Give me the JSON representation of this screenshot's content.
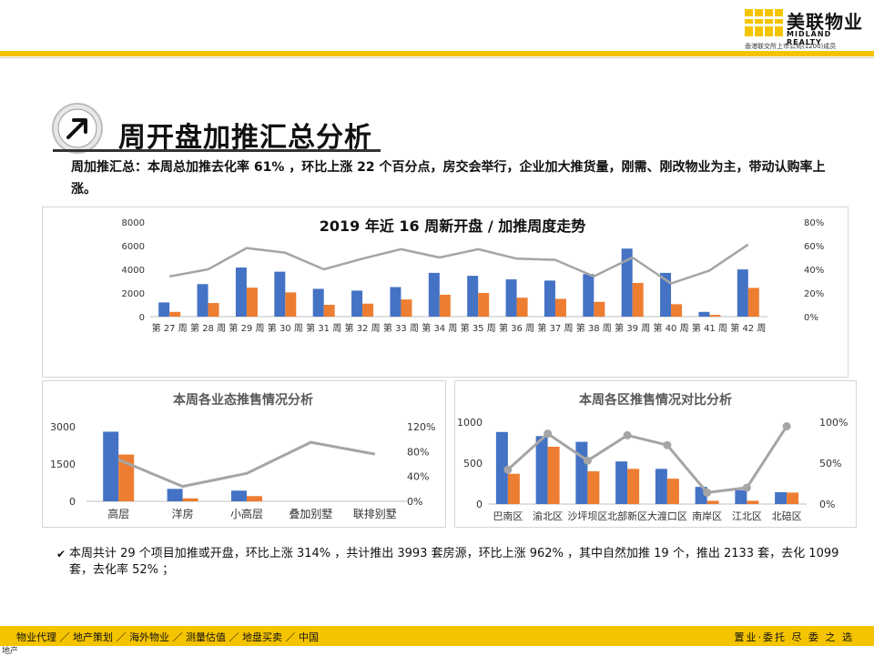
{
  "header": {
    "logo_cn": "美联物业",
    "logo_en": "MIDLAND REALTY",
    "logo_sub": "香港联交所上市公司(1200)成员"
  },
  "page": {
    "title": "周开盘加推汇总分析",
    "summary": "周加推汇总：本周总加推去化率 61% ，环比上涨 22 个百分点，房交会举行，企业加大推货量，刚需、刚改物业为主，带动认购率上涨。",
    "note": "本周共计 29 个项目加推或开盘，环比上涨 314% ，共计推出 3993 套房源，环比上涨 962% ，其中自然加推 19 个，推出 2133 套，去化 1099 套，去化率 52% ；"
  },
  "colors": {
    "blue": "#4472c4",
    "orange": "#ed7d31",
    "gray": "#a5a5a5",
    "accent": "#f5c400"
  },
  "chart_data": [
    {
      "type": "bar",
      "title": "2019 年近 16 周新开盘 / 加推周度走势",
      "categories": [
        "第 27 周",
        "第 28 周",
        "第 29 周",
        "第 30 周",
        "第 31 周",
        "第 32 周",
        "第 33 周",
        "第 34 周",
        "第 35 周",
        "第 36 周",
        "第 37 周",
        "第 38 周",
        "第 39 周",
        "第 40 周",
        "第 41 周",
        "第 42 周"
      ],
      "series": [
        {
          "values": [
            1200,
            2750,
            4150,
            3800,
            2350,
            2200,
            2500,
            3700,
            3450,
            3150,
            3050,
            3600,
            5750,
            3700,
            400,
            3990
          ]
        },
        {
          "values": [
            400,
            1150,
            2450,
            2050,
            1000,
            1100,
            1450,
            1850,
            2000,
            1600,
            1500,
            1250,
            2850,
            1050,
            150,
            2430
          ]
        },
        {
          "axis": "right",
          "type": "line",
          "values": [
            0.34,
            0.4,
            0.58,
            0.54,
            0.4,
            0.49,
            0.57,
            0.5,
            0.57,
            0.49,
            0.48,
            0.34,
            0.5,
            0.28,
            0.39,
            0.61
          ]
        }
      ],
      "yticks": [
        "0",
        "2000",
        "4000",
        "6000",
        "8000"
      ],
      "y2ticks": [
        "0%",
        "20%",
        "40%",
        "60%",
        "80%"
      ],
      "ylim": [
        0,
        8000
      ],
      "y2lim": [
        0,
        0.8
      ]
    },
    {
      "type": "bar",
      "title": "本周各业态推售情况分析",
      "categories": [
        "高层",
        "洋房",
        "小高层",
        "叠加别墅",
        "联排别墅"
      ],
      "series": [
        {
          "values": [
            2800,
            500,
            430,
            0,
            0
          ]
        },
        {
          "values": [
            1880,
            120,
            210,
            0,
            0
          ]
        },
        {
          "axis": "right",
          "type": "line",
          "values": [
            0.67,
            0.24,
            0.45,
            0.95,
            0.76
          ]
        }
      ],
      "yticks": [
        "0",
        "1500",
        "3000"
      ],
      "y2ticks": [
        "0%",
        "40%",
        "80%",
        "120%"
      ],
      "ylim": [
        0,
        3000
      ],
      "y2lim": [
        0,
        1.2
      ]
    },
    {
      "type": "bar",
      "title": "本周各区推售情况对比分析",
      "categories": [
        "巴南区",
        "渝北区",
        "沙坪坝区",
        "北部新区",
        "大渡口区",
        "南岸区",
        "江北区",
        "北碚区"
      ],
      "series": [
        {
          "values": [
            880,
            830,
            760,
            520,
            430,
            210,
            170,
            145
          ]
        },
        {
          "values": [
            370,
            700,
            400,
            430,
            310,
            40,
            40,
            140
          ]
        },
        {
          "axis": "right",
          "type": "line",
          "values": [
            0.42,
            0.86,
            0.53,
            0.84,
            0.72,
            0.14,
            0.2,
            0.95
          ]
        }
      ],
      "yticks": [
        "0",
        "500",
        "1000"
      ],
      "y2ticks": [
        "0%",
        "50%",
        "100%"
      ],
      "ylim": [
        0,
        1000
      ],
      "y2lim": [
        0,
        1.0
      ]
    }
  ],
  "footer": {
    "items": "物业代理 ／ 地产策划 ／ 海外物业 ／ 测量估值 ／ 地盘买卖 ／ 中国",
    "right": "置业·委托 尽 委 之 选",
    "corner": "地产"
  }
}
